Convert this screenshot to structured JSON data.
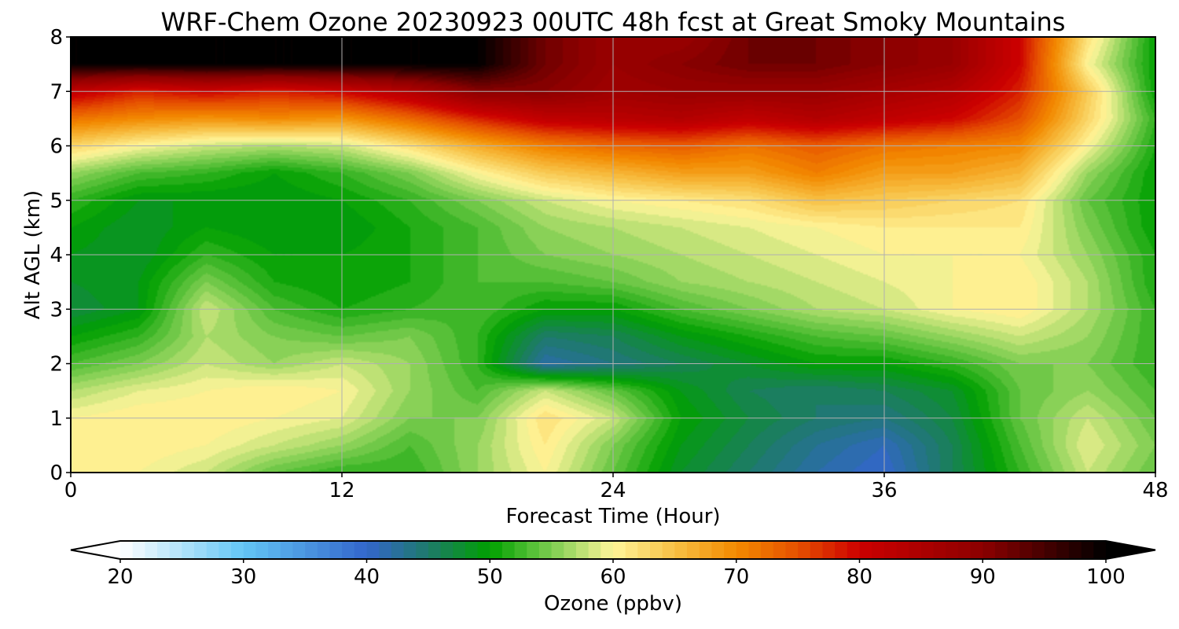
{
  "chart_data": {
    "type": "heatmap",
    "title": "WRF-Chem Ozone  20230923 00UTC 48h fcst at Great Smoky Mountains",
    "xlabel": "Forecast Time (Hour)",
    "ylabel": "Alt AGL (km)",
    "xlim": [
      0,
      48
    ],
    "ylim": [
      0,
      8
    ],
    "xticks": [
      0,
      12,
      24,
      36,
      48
    ],
    "yticks": [
      0,
      1,
      2,
      3,
      4,
      5,
      6,
      7,
      8
    ],
    "grid": true,
    "x": [
      0,
      3,
      6,
      9,
      12,
      15,
      18,
      21,
      24,
      27,
      30,
      33,
      36,
      39,
      42,
      45,
      48
    ],
    "y": [
      0,
      0.5,
      1,
      1.5,
      2,
      2.5,
      3,
      3.5,
      4,
      4.5,
      5,
      5.5,
      6,
      6.5,
      7,
      7.5,
      8
    ],
    "z": [
      [
        60,
        60,
        58,
        54,
        52,
        52,
        56,
        60,
        54,
        48,
        45,
        42,
        40,
        46,
        52,
        58,
        54
      ],
      [
        61,
        61,
        60,
        58,
        56,
        53,
        56,
        61,
        55,
        49,
        46,
        43,
        41,
        46,
        53,
        59,
        55
      ],
      [
        60,
        61,
        61,
        60,
        59,
        55,
        55,
        62,
        58,
        50,
        47,
        45,
        44,
        47,
        54,
        58,
        54
      ],
      [
        57,
        59,
        60,
        61,
        60,
        56,
        53,
        58,
        54,
        49,
        46,
        45,
        46,
        48,
        54,
        56,
        53
      ],
      [
        53,
        55,
        58,
        56,
        58,
        56,
        52,
        42,
        44,
        46,
        48,
        50,
        50,
        52,
        55,
        55,
        52
      ],
      [
        50,
        52,
        57,
        55,
        54,
        55,
        52,
        45,
        46,
        49,
        51,
        53,
        54,
        56,
        58,
        56,
        52
      ],
      [
        47,
        49,
        58,
        53,
        51,
        52,
        53,
        50,
        50,
        53,
        55,
        57,
        58,
        60,
        61,
        57,
        52
      ],
      [
        48,
        49,
        55,
        51,
        50,
        51,
        53,
        53,
        54,
        56,
        57,
        58,
        59,
        60,
        61,
        57,
        51
      ],
      [
        49,
        48,
        52,
        50,
        50,
        51,
        53,
        55,
        56,
        57,
        58,
        59,
        60,
        60,
        60,
        56,
        51
      ],
      [
        50,
        48,
        50,
        49,
        49,
        51,
        53,
        56,
        57,
        58,
        59,
        60,
        61,
        61,
        61,
        55,
        50
      ],
      [
        52,
        49,
        49,
        49,
        50,
        52,
        55,
        58,
        60,
        61,
        62,
        65,
        64,
        63,
        62,
        54,
        50
      ],
      [
        56,
        53,
        52,
        50,
        52,
        55,
        60,
        64,
        66,
        68,
        68,
        71,
        68,
        68,
        66,
        56,
        50
      ],
      [
        63,
        60,
        58,
        57,
        58,
        62,
        67,
        71,
        73,
        74,
        72,
        74,
        72,
        71,
        70,
        60,
        51
      ],
      [
        72,
        70,
        69,
        70,
        69,
        73,
        78,
        82,
        83,
        84,
        82,
        84,
        82,
        80,
        75,
        63,
        52
      ],
      [
        82,
        78,
        80,
        78,
        80,
        84,
        90,
        90,
        87,
        88,
        88,
        88,
        86,
        84,
        78,
        64,
        50
      ],
      [
        100,
        100,
        100,
        100,
        100,
        100,
        100,
        92,
        88,
        90,
        92,
        92,
        90,
        88,
        80,
        60,
        50
      ],
      [
        100,
        100,
        100,
        100,
        100,
        100,
        100,
        92,
        88,
        88,
        92,
        92,
        90,
        88,
        80,
        62,
        50
      ]
    ],
    "colorbar": {
      "label": "Ozone  (ppbv)",
      "min": 20,
      "max": 100,
      "ticks": [
        20,
        30,
        40,
        50,
        60,
        70,
        80,
        90,
        100
      ],
      "extend": "both",
      "colors": [
        [
          20,
          "#ffffff"
        ],
        [
          30,
          "#63c6f5"
        ],
        [
          40,
          "#3366cc"
        ],
        [
          45,
          "#1e7a6a"
        ],
        [
          50,
          "#00a000"
        ],
        [
          55,
          "#7ccd50"
        ],
        [
          60,
          "#fff59a"
        ],
        [
          65,
          "#f7c044"
        ],
        [
          70,
          "#f38a00"
        ],
        [
          75,
          "#e65000"
        ],
        [
          80,
          "#cc0000"
        ],
        [
          90,
          "#8c0000"
        ],
        [
          100,
          "#000000"
        ]
      ]
    }
  }
}
